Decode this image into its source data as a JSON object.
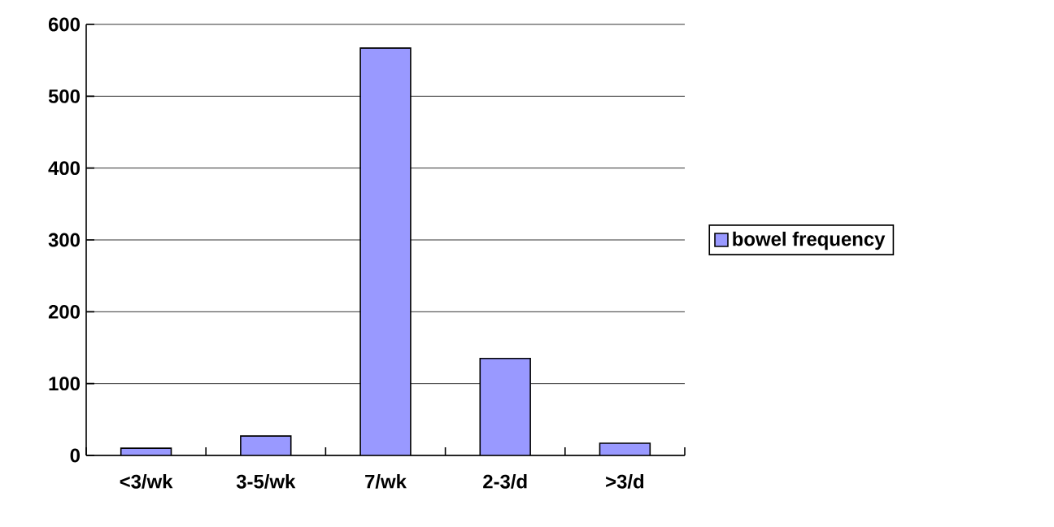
{
  "chart_data": {
    "type": "bar",
    "categories": [
      "<3/wk",
      "3-5/wk",
      "7/wk",
      "2-3/d",
      ">3/d"
    ],
    "series": [
      {
        "name": "bowel frequency",
        "color": "#9999ff",
        "values": [
          10,
          27,
          567,
          135,
          17
        ]
      }
    ],
    "ylim": [
      0,
      600
    ],
    "yticks": [
      0,
      100,
      200,
      300,
      400,
      500,
      600
    ],
    "grid": "y",
    "legend": "right"
  }
}
